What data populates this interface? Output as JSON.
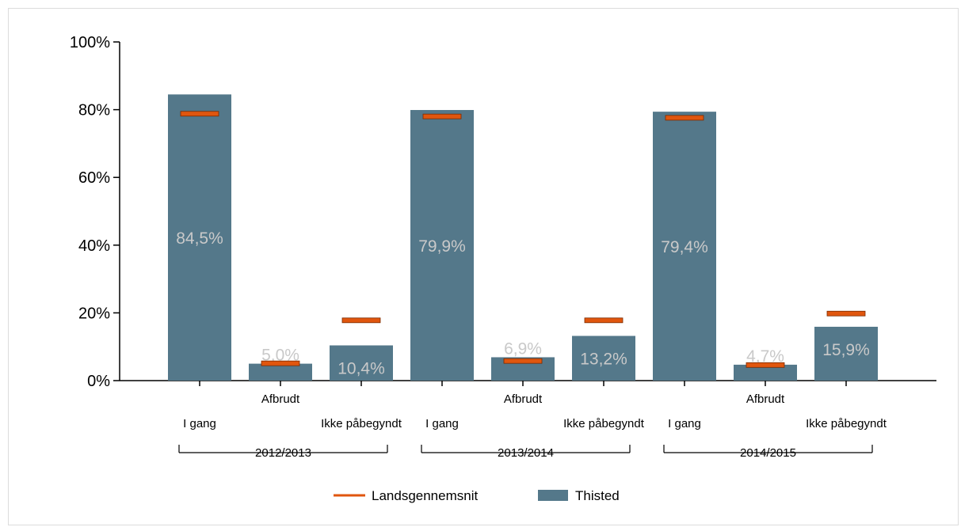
{
  "chart_data": {
    "type": "bar",
    "title": "",
    "xlabel": "",
    "ylabel": "",
    "ylim": [
      0,
      100
    ],
    "yticks": [
      "0%",
      "20%",
      "40%",
      "60%",
      "80%",
      "100%"
    ],
    "groups": [
      {
        "label": "2012/2013",
        "categories": [
          "I gang",
          "Afbrudt",
          "Ikke påbegyndt"
        ],
        "values": [
          84.5,
          5.0,
          10.4
        ],
        "value_labels": [
          "84,5%",
          "5,0%",
          "10,4%"
        ],
        "national_average": [
          78.8,
          5.1,
          17.8
        ]
      },
      {
        "label": "2013/2014",
        "categories": [
          "I gang",
          "Afbrudt",
          "Ikke påbegyndt"
        ],
        "values": [
          79.9,
          6.9,
          13.2
        ],
        "value_labels": [
          "79,9%",
          "6,9%",
          "13,2%"
        ],
        "national_average": [
          78.0,
          5.8,
          17.8
        ]
      },
      {
        "label": "2014/2015",
        "categories": [
          "I gang",
          "Afbrudt",
          "Ikke påbegyndt"
        ],
        "values": [
          79.4,
          4.7,
          15.9
        ],
        "value_labels": [
          "79,4%",
          "4,7%",
          "15,9%"
        ],
        "national_average": [
          77.6,
          4.6,
          19.8
        ]
      }
    ],
    "legend": {
      "placement": "bottom",
      "entries": [
        {
          "name": "Landsgennemsnit",
          "kind": "marker",
          "color": "#e0560e"
        },
        {
          "name": "Thisted",
          "kind": "bar",
          "color": "#54788a"
        }
      ]
    },
    "colors": {
      "bar": "#54788a",
      "marker": "#e0560e",
      "bar_label": "#c9c9c9"
    }
  }
}
